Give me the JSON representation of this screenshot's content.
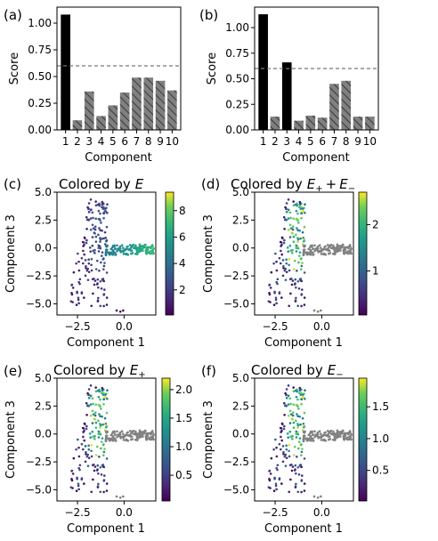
{
  "chart_data": [
    {
      "panel": "(a)",
      "type": "bar",
      "categories": [
        "1",
        "2",
        "3",
        "4",
        "5",
        "6",
        "7",
        "8",
        "9",
        "10"
      ],
      "values": [
        1.08,
        0.09,
        0.36,
        0.13,
        0.23,
        0.35,
        0.49,
        0.49,
        0.46,
        0.37
      ],
      "bar_styles": [
        "solid",
        "hatched",
        "hatched",
        "hatched",
        "hatched",
        "hatched",
        "hatched",
        "hatched",
        "hatched",
        "hatched"
      ],
      "threshold": 0.6,
      "xlabel": "Component",
      "ylabel": "Score",
      "ylim": [
        0,
        1.15
      ],
      "yticks": [
        "0.00",
        "0.25",
        "0.50",
        "0.75",
        "1.00"
      ]
    },
    {
      "panel": "(b)",
      "type": "bar",
      "categories": [
        "1",
        "2",
        "3",
        "4",
        "5",
        "6",
        "7",
        "8",
        "9",
        "10"
      ],
      "values": [
        1.13,
        0.13,
        0.66,
        0.09,
        0.14,
        0.12,
        0.45,
        0.48,
        0.13,
        0.13
      ],
      "bar_styles": [
        "solid",
        "hatched",
        "solid",
        "hatched",
        "hatched",
        "hatched",
        "hatched",
        "hatched",
        "hatched",
        "hatched"
      ],
      "threshold": 0.6,
      "xlabel": "Component",
      "ylabel": "Score",
      "ylim": [
        0,
        1.2
      ],
      "yticks": [
        "0.00",
        "0.25",
        "0.50",
        "0.75",
        "1.00"
      ]
    },
    {
      "panel": "(c)",
      "type": "scatter",
      "title": "Colored by",
      "title_symbol": "E",
      "xlabel": "Component 1",
      "ylabel": "Component 3",
      "xlim": [
        -3.6,
        1.7
      ],
      "ylim": [
        -6.0,
        5.0
      ],
      "xticks": [
        "−2.5",
        "0.0"
      ],
      "yticks": [
        "5.0",
        "2.5",
        "0.0",
        "−2.5",
        "−5.0"
      ],
      "colorbar": {
        "range": [
          0.1,
          9.4
        ],
        "ticks": [
          "2",
          "4",
          "6",
          "8"
        ]
      }
    },
    {
      "panel": "(d)",
      "type": "scatter",
      "title": "Colored by",
      "title_symbol": "E",
      "xlabel": "Component 1",
      "ylabel": "Component 3",
      "xlim": [
        -3.6,
        1.7
      ],
      "ylim": [
        -6.0,
        5.0
      ],
      "xticks": [
        "−2.5",
        "0.0"
      ],
      "yticks": [
        "5.0",
        "2.5",
        "0.0",
        "−2.5",
        "−5.0"
      ],
      "colorbar": {
        "range": [
          0.05,
          2.7
        ],
        "ticks": [
          "1",
          "2"
        ]
      }
    },
    {
      "panel": "(e)",
      "type": "scatter",
      "title": "Colored by",
      "title_symbol": "E",
      "xlabel": "Component 1",
      "ylabel": "Component 3",
      "xlim": [
        -3.6,
        1.7
      ],
      "ylim": [
        -6.0,
        5.0
      ],
      "xticks": [
        "−2.5",
        "0.0"
      ],
      "yticks": [
        "5.0",
        "2.5",
        "0.0",
        "−2.5",
        "−5.0"
      ],
      "colorbar": {
        "range": [
          0.05,
          2.2
        ],
        "ticks": [
          "0.5",
          "1.0",
          "1.5",
          "2.0"
        ]
      }
    },
    {
      "panel": "(f)",
      "type": "scatter",
      "title": "Colored by",
      "title_symbol": "E",
      "xlabel": "Component 1",
      "ylabel": "Component 3",
      "xlim": [
        -3.6,
        1.7
      ],
      "ylim": [
        -6.0,
        5.0
      ],
      "xticks": [
        "−2.5",
        "0.0"
      ],
      "yticks": [
        "5.0",
        "2.5",
        "0.0",
        "−2.5",
        "−5.0"
      ],
      "colorbar": {
        "range": [
          0.02,
          1.95
        ],
        "ticks": [
          "0.5",
          "1.0",
          "1.5"
        ]
      }
    }
  ]
}
